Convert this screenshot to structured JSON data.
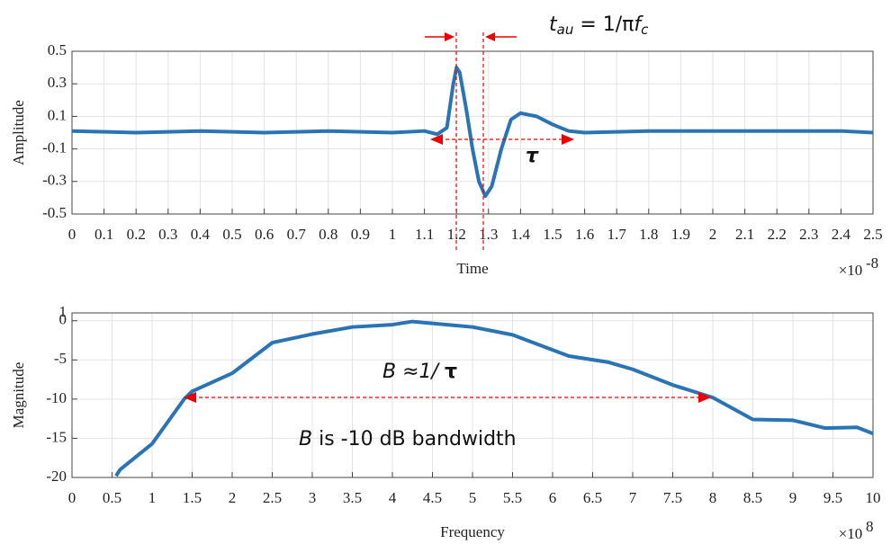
{
  "chart_data": [
    {
      "type": "line",
      "color": "#2a73b5",
      "grid": true,
      "y_label": "Amplitude",
      "x_label": "Time",
      "x_multiplier": {
        "base": "×10",
        "exponent": "-8"
      },
      "xlim": [
        0,
        2.5
      ],
      "ylim": [
        -0.5,
        0.5
      ],
      "xticks": [
        0,
        0.1,
        0.2,
        0.3,
        0.4,
        0.5,
        0.6,
        0.7,
        0.8,
        0.9,
        1,
        1.1,
        1.2,
        1.3,
        1.4,
        1.5,
        1.6,
        1.7,
        1.8,
        1.9,
        2,
        2.1,
        2.2,
        2.3,
        2.4,
        2.5
      ],
      "yticks": [
        -0.5,
        -0.3,
        -0.1,
        0.1,
        0.3,
        0.5
      ],
      "x": [
        0,
        0.2,
        0.4,
        0.6,
        0.8,
        1.0,
        1.1,
        1.14,
        1.17,
        1.19,
        1.2,
        1.21,
        1.23,
        1.25,
        1.27,
        1.29,
        1.31,
        1.34,
        1.37,
        1.4,
        1.45,
        1.5,
        1.55,
        1.6,
        1.8,
        2.0,
        2.2,
        2.4,
        2.5
      ],
      "values": [
        0.01,
        0.0,
        0.01,
        0.0,
        0.01,
        0.0,
        0.01,
        -0.01,
        0.03,
        0.3,
        0.4,
        0.37,
        0.15,
        -0.1,
        -0.3,
        -0.39,
        -0.33,
        -0.1,
        0.08,
        0.12,
        0.1,
        0.05,
        0.01,
        0.0,
        0.01,
        0.01,
        0.01,
        0.01,
        0.0
      ],
      "annotations": {
        "formula": [
          "t",
          "au",
          " = 1/π",
          "f",
          "c"
        ],
        "tau": "τ"
      }
    },
    {
      "type": "line",
      "color": "#2a73b5",
      "grid": true,
      "y_label": "Magnitude",
      "x_label": "Frequency",
      "x_multiplier": {
        "base": "×10",
        "exponent": "8"
      },
      "xlim": [
        0,
        10
      ],
      "ylim": [
        -20,
        1
      ],
      "xticks": [
        0,
        0.5,
        1,
        1.5,
        2,
        2.5,
        3,
        3.5,
        4,
        4.5,
        5,
        5.5,
        6,
        6.5,
        7,
        7.5,
        8,
        8.5,
        9,
        9.5,
        10
      ],
      "yticks": [
        -20,
        -15,
        -10,
        -5,
        0,
        1
      ],
      "x": [
        0.55,
        0.6,
        1.0,
        1.4,
        1.5,
        2.0,
        2.5,
        3.0,
        3.5,
        4.0,
        4.25,
        5.0,
        5.5,
        6.2,
        6.7,
        7.0,
        7.5,
        8.0,
        8.5,
        9.0,
        9.4,
        9.8,
        10
      ],
      "values": [
        -19.8,
        -19,
        -15.7,
        -10,
        -9,
        -6.7,
        -2.8,
        -1.7,
        -0.8,
        -0.5,
        -0.1,
        -0.8,
        -1.8,
        -4.5,
        -5.3,
        -6.2,
        -8.2,
        -9.8,
        -12.6,
        -12.7,
        -13.7,
        -13.6,
        -14.4
      ],
      "annotations": {
        "approx": [
          "B",
          " ≈1/ ",
          "τ"
        ],
        "note": [
          "B",
          " is -10 dB bandwidth"
        ]
      }
    }
  ]
}
